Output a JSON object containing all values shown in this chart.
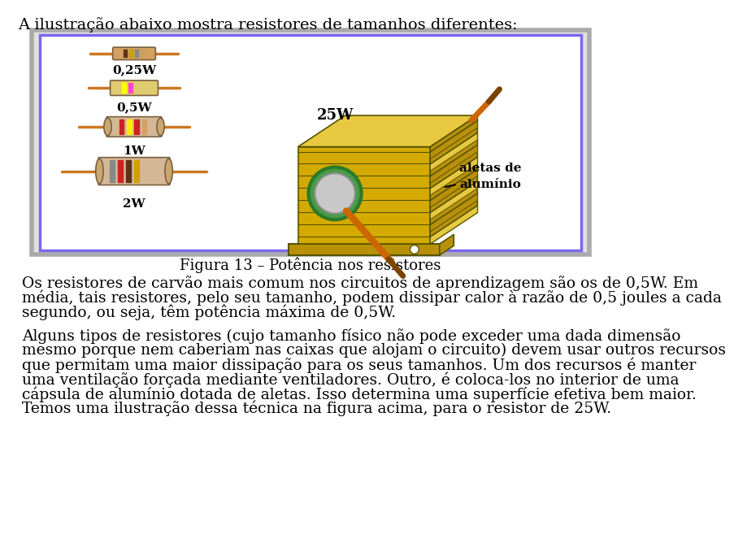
{
  "title_text": "A ilustração abaixo mostra resistores de tamanhos diferentes:",
  "figure_caption": "Figura 13 – Potência nos resistores",
  "paragraph1_line1": "Os resistores de carvão mais comum nos circuitos de aprendizagem são os de 0,5W. Em",
  "paragraph1_line2": "média, tais resistores, pelo seu tamanho, podem dissipar calor à razão de 0,5 joules a cada",
  "paragraph1_line3": "segundo, ou seja, têm potência máxima de 0,5W.",
  "paragraph2_line1": "Alguns tipos de resistores (cujo tamanho físico não pode exceder uma dada dimensão",
  "paragraph2_line2": "mesmo porque nem caberiam nas caixas que alojam o circuito) devem usar outros recursos",
  "paragraph2_line3": "que permitam uma maior dissipação para os seus tamanhos. Um dos recursos é manter",
  "paragraph2_line4": "uma ventilação forçada mediante ventiladores. Outro, é coloca-los no interior de uma",
  "paragraph2_line5": "cápsula de alumínio dotada de aletas. Isso determina uma superfície efetiva bem maior.",
  "paragraph2_line6": "Temos uma ilustração dessa técnica na figura acima, para o resistor de 25W.",
  "bg_color": "#ffffff",
  "text_color": "#000000",
  "font_size": 13.5,
  "title_font_size": 14,
  "caption_font_size": 13,
  "image_box_outer_color": "#aaaaaa",
  "image_box_inner_color": "#7b68ee",
  "wire_color": "#cc7722",
  "gold": "#d4aa00",
  "gold_dark": "#b8900a",
  "gold_light": "#e8c840",
  "green_ring": "#3a8a3a",
  "gray_center": "#c0c0c0"
}
